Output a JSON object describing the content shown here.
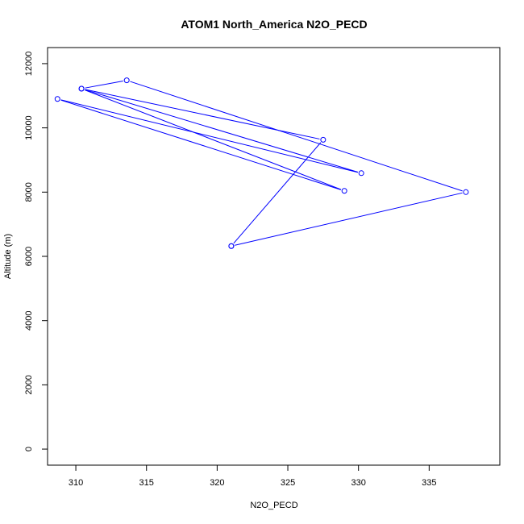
{
  "chart_data": {
    "type": "line",
    "title": "ATOM1 North_America N2O_PECD",
    "xlabel": "N2O_PECD",
    "ylabel": "Altitude (m)",
    "xlim": [
      308.0,
      340.0
    ],
    "ylim": [
      -500,
      12500
    ],
    "x_ticks": [
      310,
      315,
      320,
      325,
      330,
      335
    ],
    "y_ticks": [
      0,
      2000,
      4000,
      6000,
      8000,
      10000,
      12000
    ],
    "grid": false,
    "series": [
      {
        "color": "#0000ff",
        "marker": "open-circle",
        "points": [
          {
            "x": 321.0,
            "y": 6320
          },
          {
            "x": 327.5,
            "y": 9630
          },
          {
            "x": 310.4,
            "y": 11220
          },
          {
            "x": 330.2,
            "y": 8590
          },
          {
            "x": 308.7,
            "y": 10900
          },
          {
            "x": 329.0,
            "y": 8040
          },
          {
            "x": 310.4,
            "y": 11220
          },
          {
            "x": 313.6,
            "y": 11480
          },
          {
            "x": 337.6,
            "y": 8000
          },
          {
            "x": 321.0,
            "y": 6320
          }
        ]
      }
    ]
  }
}
